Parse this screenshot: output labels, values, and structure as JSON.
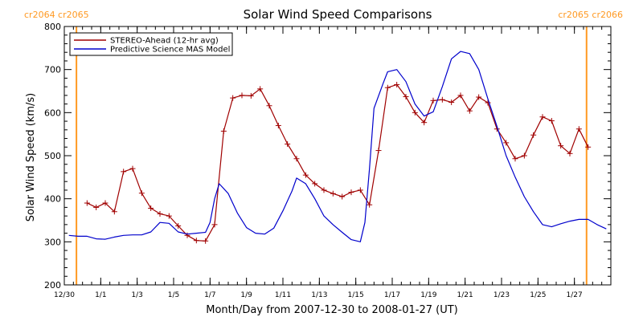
{
  "chart_data": {
    "type": "line",
    "title": "Solar Wind Speed Comparisons",
    "xlabel": "Month/Day from 2007-12-30 to 2008-01-27 (UT)",
    "ylabel": "Solar Wind Speed (km/s)",
    "xlim": [
      "2007-12-30",
      "2008-01-27"
    ],
    "ylim": [
      200,
      800
    ],
    "y_ticks": [
      200,
      300,
      400,
      500,
      600,
      700,
      800
    ],
    "x_ticks": [
      {
        "date": "2007-12-30",
        "label": "12/30"
      },
      {
        "date": "2008-01-01",
        "label": "1/1"
      },
      {
        "date": "2008-01-03",
        "label": "1/3"
      },
      {
        "date": "2008-01-05",
        "label": "1/5"
      },
      {
        "date": "2008-01-07",
        "label": "1/7"
      },
      {
        "date": "2008-01-09",
        "label": "1/9"
      },
      {
        "date": "2008-01-11",
        "label": "1/11"
      },
      {
        "date": "2008-01-13",
        "label": "1/13"
      },
      {
        "date": "2008-01-15",
        "label": "1/15"
      },
      {
        "date": "2008-01-17",
        "label": "1/17"
      },
      {
        "date": "2008-01-19",
        "label": "1/19"
      },
      {
        "date": "2008-01-21",
        "label": "1/21"
      },
      {
        "date": "2008-01-23",
        "label": "1/23"
      },
      {
        "date": "2008-01-25",
        "label": "1/25"
      },
      {
        "date": "2008-01-27",
        "label": "1/27"
      }
    ],
    "legend_position": "top-left",
    "grid": false,
    "series": [
      {
        "name": "STEREO-Ahead (12-hr avg)",
        "color": "#a00000",
        "marker": "plus",
        "points": [
          [
            "2007-12-31 06:00",
            390
          ],
          [
            "2007-12-31 18:00",
            380
          ],
          [
            "2008-01-01 06:00",
            390
          ],
          [
            "2008-01-01 18:00",
            370
          ],
          [
            "2008-01-02 06:00",
            463
          ],
          [
            "2008-01-02 18:00",
            470
          ],
          [
            "2008-01-03 06:00",
            413
          ],
          [
            "2008-01-03 18:00",
            378
          ],
          [
            "2008-01-04 06:00",
            365
          ],
          [
            "2008-01-04 18:00",
            360
          ],
          [
            "2008-01-05 06:00",
            337
          ],
          [
            "2008-01-05 18:00",
            315
          ],
          [
            "2008-01-06 06:00",
            303
          ],
          [
            "2008-01-06 18:00",
            302
          ],
          [
            "2008-01-07 06:00",
            340
          ],
          [
            "2008-01-07 18:00",
            557
          ],
          [
            "2008-01-08 06:00",
            634
          ],
          [
            "2008-01-08 18:00",
            640
          ],
          [
            "2008-01-09 06:00",
            639
          ],
          [
            "2008-01-09 18:00",
            655
          ],
          [
            "2008-01-10 06:00",
            616
          ],
          [
            "2008-01-10 18:00",
            570
          ],
          [
            "2008-01-11 06:00",
            527
          ],
          [
            "2008-01-11 18:00",
            493
          ],
          [
            "2008-01-12 06:00",
            455
          ],
          [
            "2008-01-12 18:00",
            435
          ],
          [
            "2008-01-13 06:00",
            420
          ],
          [
            "2008-01-13 18:00",
            412
          ],
          [
            "2008-01-14 06:00",
            405
          ],
          [
            "2008-01-14 18:00",
            415
          ],
          [
            "2008-01-15 06:00",
            420
          ],
          [
            "2008-01-15 18:00",
            386
          ],
          [
            "2008-01-16 06:00",
            512
          ],
          [
            "2008-01-16 18:00",
            658
          ],
          [
            "2008-01-17 06:00",
            665
          ],
          [
            "2008-01-17 18:00",
            637
          ],
          [
            "2008-01-18 06:00",
            600
          ],
          [
            "2008-01-18 18:00",
            577
          ],
          [
            "2008-01-19 06:00",
            628
          ],
          [
            "2008-01-19 18:00",
            630
          ],
          [
            "2008-01-20 06:00",
            624
          ],
          [
            "2008-01-20 18:00",
            640
          ],
          [
            "2008-01-21 06:00",
            604
          ],
          [
            "2008-01-21 18:00",
            636
          ],
          [
            "2008-01-22 06:00",
            623
          ],
          [
            "2008-01-22 18:00",
            562
          ],
          [
            "2008-01-23 06:00",
            530
          ],
          [
            "2008-01-23 18:00",
            493
          ],
          [
            "2008-01-24 06:00",
            500
          ],
          [
            "2008-01-24 18:00",
            548
          ],
          [
            "2008-01-25 06:00",
            590
          ],
          [
            "2008-01-25 18:00",
            581
          ],
          [
            "2008-01-26 06:00",
            523
          ],
          [
            "2008-01-26 18:00",
            505
          ],
          [
            "2008-01-27 06:00",
            562
          ],
          [
            "2008-01-27 18:00",
            520
          ]
        ]
      },
      {
        "name": "Predictive Science MAS Model",
        "color": "#0000cc",
        "marker": "none",
        "points": [
          [
            "2007-12-30 06:00",
            315
          ],
          [
            "2007-12-30 18:00",
            313
          ],
          [
            "2007-12-31 06:00",
            313
          ],
          [
            "2007-12-31 18:00",
            307
          ],
          [
            "2008-01-01 06:00",
            306
          ],
          [
            "2008-01-01 18:00",
            311
          ],
          [
            "2008-01-02 06:00",
            315
          ],
          [
            "2008-01-02 18:00",
            316
          ],
          [
            "2008-01-03 06:00",
            316
          ],
          [
            "2008-01-03 18:00",
            323
          ],
          [
            "2008-01-04 06:00",
            345
          ],
          [
            "2008-01-04 18:00",
            343
          ],
          [
            "2008-01-05 06:00",
            323
          ],
          [
            "2008-01-05 18:00",
            318
          ],
          [
            "2008-01-06 06:00",
            320
          ],
          [
            "2008-01-06 18:00",
            322
          ],
          [
            "2008-01-07 00:00",
            345
          ],
          [
            "2008-01-07 06:00",
            400
          ],
          [
            "2008-01-07 12:00",
            435
          ],
          [
            "2008-01-08 00:00",
            412
          ],
          [
            "2008-01-08 12:00",
            367
          ],
          [
            "2008-01-09 00:00",
            333
          ],
          [
            "2008-01-09 12:00",
            320
          ],
          [
            "2008-01-10 00:00",
            318
          ],
          [
            "2008-01-10 12:00",
            332
          ],
          [
            "2008-01-11 00:00",
            372
          ],
          [
            "2008-01-11 12:00",
            418
          ],
          [
            "2008-01-11 18:00",
            448
          ],
          [
            "2008-01-12 06:00",
            435
          ],
          [
            "2008-01-12 18:00",
            400
          ],
          [
            "2008-01-13 06:00",
            360
          ],
          [
            "2008-01-13 18:00",
            340
          ],
          [
            "2008-01-14 06:00",
            322
          ],
          [
            "2008-01-14 18:00",
            305
          ],
          [
            "2008-01-15 06:00",
            300
          ],
          [
            "2008-01-15 12:00",
            345
          ],
          [
            "2008-01-15 18:00",
            470
          ],
          [
            "2008-01-16 00:00",
            610
          ],
          [
            "2008-01-16 12:00",
            668
          ],
          [
            "2008-01-16 18:00",
            695
          ],
          [
            "2008-01-17 06:00",
            700
          ],
          [
            "2008-01-17 18:00",
            672
          ],
          [
            "2008-01-18 06:00",
            620
          ],
          [
            "2008-01-18 18:00",
            592
          ],
          [
            "2008-01-19 06:00",
            602
          ],
          [
            "2008-01-19 18:00",
            660
          ],
          [
            "2008-01-20 06:00",
            725
          ],
          [
            "2008-01-20 18:00",
            742
          ],
          [
            "2008-01-21 06:00",
            737
          ],
          [
            "2008-01-21 18:00",
            700
          ],
          [
            "2008-01-22 06:00",
            632
          ],
          [
            "2008-01-22 18:00",
            568
          ],
          [
            "2008-01-23 06:00",
            500
          ],
          [
            "2008-01-23 18:00",
            450
          ],
          [
            "2008-01-24 06:00",
            405
          ],
          [
            "2008-01-24 18:00",
            370
          ],
          [
            "2008-01-25 06:00",
            340
          ],
          [
            "2008-01-25 18:00",
            335
          ],
          [
            "2008-01-26 06:00",
            342
          ],
          [
            "2008-01-26 18:00",
            348
          ],
          [
            "2008-01-27 06:00",
            352
          ],
          [
            "2008-01-27 18:00",
            352
          ],
          [
            "2008-01-28 06:00",
            340
          ],
          [
            "2008-01-28 18:00",
            330
          ]
        ]
      }
    ],
    "vertical_markers": [
      {
        "date": "2007-12-30 16:00",
        "color": "#ff9922",
        "labels": [
          "cr2064",
          "cr2065"
        ],
        "side": "left"
      },
      {
        "date": "2008-01-27 16:00",
        "color": "#ff9922",
        "labels": [
          "cr2065",
          "cr2066"
        ],
        "side": "right"
      }
    ]
  }
}
